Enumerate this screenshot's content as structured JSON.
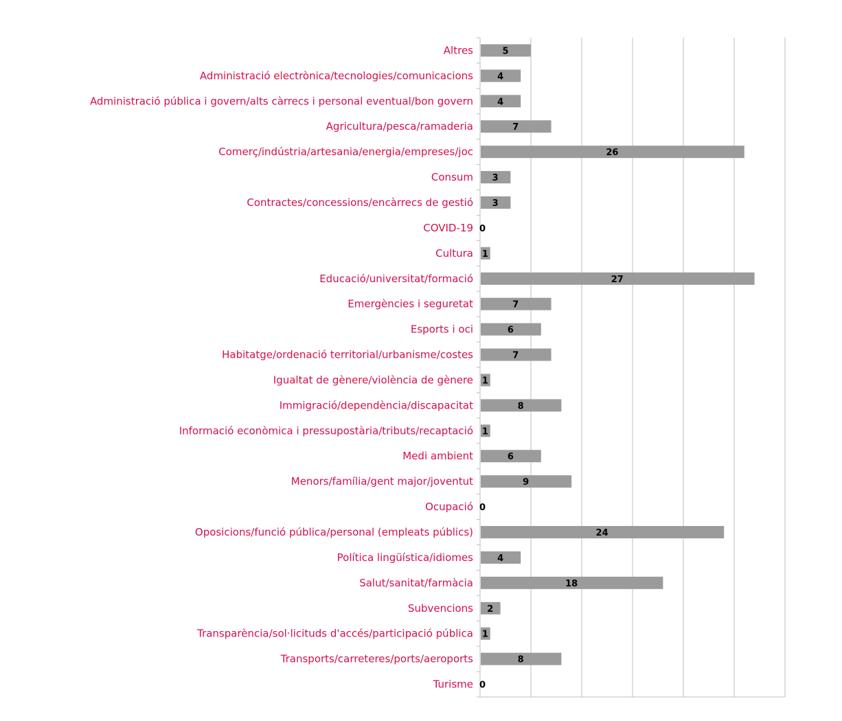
{
  "chart_data": {
    "type": "bar",
    "orientation": "horizontal",
    "title": "",
    "xlabel": "",
    "ylabel": "",
    "xlim": [
      0,
      30
    ],
    "x_gridline_step": 5,
    "x_tick_labels_shown": false,
    "grid": true,
    "legend": "none",
    "bar_color": "#9b9b9b",
    "label_color": "#d4104a",
    "categories": [
      "Altres",
      "Administració electrònica/tecnologies/comunicacions",
      "Administració pública i govern/alts càrrecs i personal eventual/bon govern",
      "Agricultura/pesca/ramaderia",
      "Comerç/indústria/artesania/energia/empreses/joc",
      "Consum",
      "Contractes/concessions/encàrrecs de gestió",
      "COVID-19",
      "Cultura",
      "Educació/universitat/formació",
      "Emergències i seguretat",
      "Esports i oci",
      "Habitatge/ordenació territorial/urbanisme/costes",
      "Igualtat de gènere/violència de gènere",
      "Immigració/dependència/discapacitat",
      "Informació econòmica i pressupostària/tributs/recaptació",
      "Medi ambient",
      "Menors/família/gent major/joventut",
      "Ocupació",
      "Oposicions/funció pública/personal (empleats públics)",
      "Política lingüística/idiomes",
      "Salut/sanitat/farmàcia",
      "Subvencions",
      "Transparència/sol·licituds d'accés/participació pública",
      "Transports/carreteres/ports/aeroports",
      "Turisme"
    ],
    "values": [
      5,
      4,
      4,
      7,
      26,
      3,
      3,
      0,
      1,
      27,
      7,
      6,
      7,
      1,
      8,
      1,
      6,
      9,
      0,
      24,
      4,
      18,
      2,
      1,
      8,
      0
    ]
  }
}
